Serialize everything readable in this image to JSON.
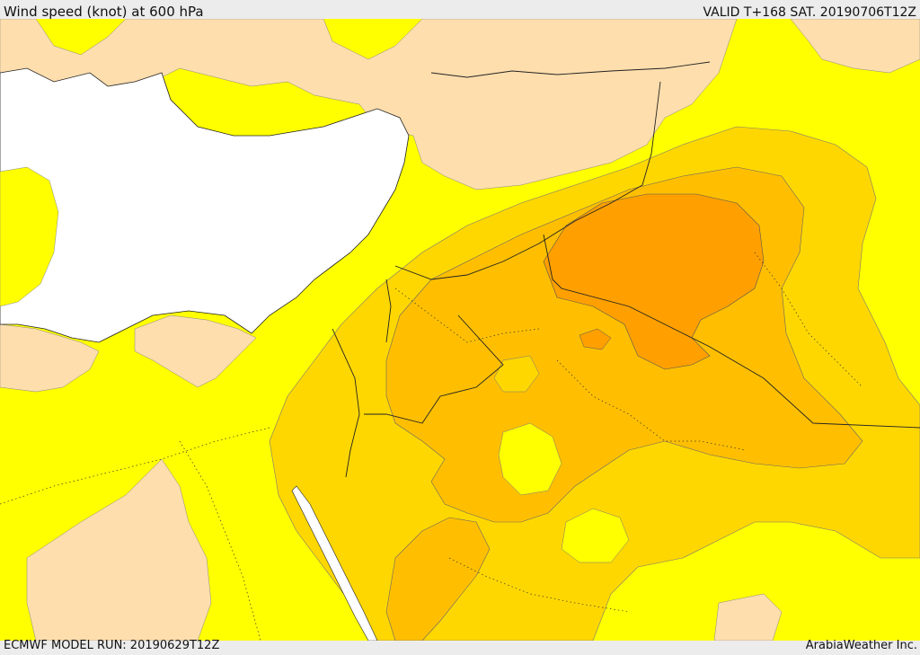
{
  "header": {
    "title": "Wind speed (knot) at 600 hPa",
    "valid": "VALID T+168 SAT. 20190706T12Z"
  },
  "footer": {
    "model_run": "ECMWF MODEL RUN: 20190629T12Z",
    "credit": "ArabiaWeather Inc."
  },
  "palette": {
    "sea": "#ffffff",
    "light_wind": "#ffdead",
    "wind_yellow": "#ffff00",
    "wind_gold": "#ffd700",
    "wind_amber": "#ffbf00",
    "wind_orange": "#ffa500",
    "wind_dark_orange": "#ff9800"
  }
}
